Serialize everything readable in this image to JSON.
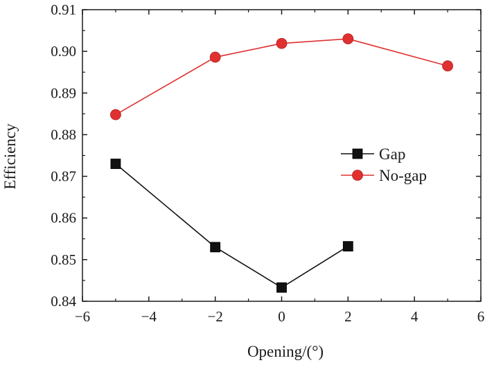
{
  "chart_data": {
    "type": "line",
    "xlabel": "Opening/(°)",
    "ylabel": "Efficiency",
    "xlim": [
      -6,
      6
    ],
    "ylim": [
      0.84,
      0.91
    ],
    "x_ticks": [
      -6,
      -4,
      -2,
      0,
      2,
      4,
      6
    ],
    "x_tick_labels": [
      "−6",
      "−4",
      "−2",
      "0",
      "2",
      "4",
      "6"
    ],
    "y_ticks": [
      0.84,
      0.85,
      0.86,
      0.87,
      0.88,
      0.89,
      0.9,
      0.91
    ],
    "y_tick_labels": [
      "0.84",
      "0.85",
      "0.86",
      "0.87",
      "0.88",
      "0.89",
      "0.90",
      "0.91"
    ],
    "grid": false,
    "legend_position": "right",
    "series": [
      {
        "name": "Gap",
        "color": "#111111",
        "marker": "square",
        "x": [
          -5,
          -2,
          0,
          2
        ],
        "y": [
          0.873,
          0.853,
          0.8433,
          0.8532
        ]
      },
      {
        "name": "No-gap",
        "color": "#e03030",
        "marker": "circle",
        "x": [
          -5,
          -2,
          0,
          2,
          5
        ],
        "y": [
          0.8848,
          0.8986,
          0.9019,
          0.903,
          0.8965
        ]
      }
    ]
  }
}
